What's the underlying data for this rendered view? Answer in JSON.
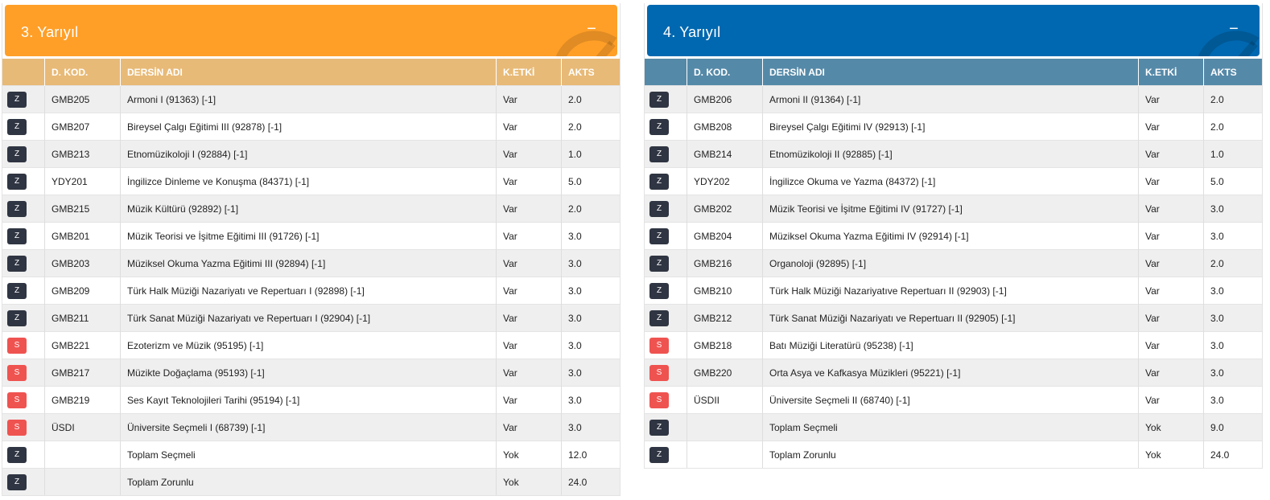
{
  "colors": {
    "sem3_header": "#ff9f28",
    "sem3_table_header": "#e8ba77",
    "sem4_header": "#0068b0",
    "sem4_table_header": "#5589a8",
    "badge_z": "#2f3542",
    "badge_s": "#ef5350"
  },
  "semesters": [
    {
      "title": "3. Yarıyıl",
      "collapse": "−",
      "columns": [
        "",
        "D. KOD.",
        "DERSİN ADI",
        "K.ETKİ",
        "AKTS"
      ],
      "rows": [
        {
          "type": "Z",
          "code": "GMB205",
          "name": "Armoni I (91363) [-1]",
          "k": "Var",
          "akts": "2.0"
        },
        {
          "type": "Z",
          "code": "GMB207",
          "name": "Bireysel Çalgı Eğitimi III (92878) [-1]",
          "k": "Var",
          "akts": "2.0"
        },
        {
          "type": "Z",
          "code": "GMB213",
          "name": "Etnomüzikoloji I (92884) [-1]",
          "k": "Var",
          "akts": "1.0"
        },
        {
          "type": "Z",
          "code": "YDY201",
          "name": "İngilizce Dinleme ve Konuşma (84371) [-1]",
          "k": "Var",
          "akts": "5.0"
        },
        {
          "type": "Z",
          "code": "GMB215",
          "name": "Müzik Kültürü (92892) [-1]",
          "k": "Var",
          "akts": "2.0"
        },
        {
          "type": "Z",
          "code": "GMB201",
          "name": "Müzik Teorisi ve İşitme Eğitimi III (91726) [-1]",
          "k": "Var",
          "akts": "3.0"
        },
        {
          "type": "Z",
          "code": "GMB203",
          "name": "Müziksel Okuma Yazma Eğitimi III (92894) [-1]",
          "k": "Var",
          "akts": "3.0"
        },
        {
          "type": "Z",
          "code": "GMB209",
          "name": "Türk Halk Müziği Nazariyatı ve Repertuarı I (92898) [-1]",
          "k": "Var",
          "akts": "3.0"
        },
        {
          "type": "Z",
          "code": "GMB211",
          "name": "Türk Sanat Müziği Nazariyatı ve Repertuarı I (92904) [-1]",
          "k": "Var",
          "akts": "3.0"
        },
        {
          "type": "S",
          "code": "GMB221",
          "name": "Ezoterizm ve Müzik (95195) [-1]",
          "k": "Var",
          "akts": "3.0"
        },
        {
          "type": "S",
          "code": "GMB217",
          "name": "Müzikte Doğaçlama (95193) [-1]",
          "k": "Var",
          "akts": "3.0"
        },
        {
          "type": "S",
          "code": "GMB219",
          "name": "Ses Kayıt Teknolojileri Tarihi (95194) [-1]",
          "k": "Var",
          "akts": "3.0"
        },
        {
          "type": "S",
          "code": "ÜSDI",
          "name": "Üniversite Seçmeli I (68739) [-1]",
          "k": "Var",
          "akts": "3.0"
        },
        {
          "type": "Z",
          "code": "",
          "name": "Toplam Seçmeli",
          "k": "Yok",
          "akts": "12.0"
        },
        {
          "type": "Z",
          "code": "",
          "name": "Toplam Zorunlu",
          "k": "Yok",
          "akts": "24.0"
        }
      ]
    },
    {
      "title": "4. Yarıyıl",
      "collapse": "−",
      "columns": [
        "",
        "D. KOD.",
        "DERSİN ADI",
        "K.ETKİ",
        "AKTS"
      ],
      "rows": [
        {
          "type": "Z",
          "code": "GMB206",
          "name": "Armoni II (91364) [-1]",
          "k": "Var",
          "akts": "2.0"
        },
        {
          "type": "Z",
          "code": "GMB208",
          "name": "Bireysel Çalgı Eğitimi IV (92913) [-1]",
          "k": "Var",
          "akts": "2.0"
        },
        {
          "type": "Z",
          "code": "GMB214",
          "name": "Etnomüzikoloji II (92885) [-1]",
          "k": "Var",
          "akts": "1.0"
        },
        {
          "type": "Z",
          "code": "YDY202",
          "name": "İngilizce Okuma ve Yazma (84372) [-1]",
          "k": "Var",
          "akts": "5.0"
        },
        {
          "type": "Z",
          "code": "GMB202",
          "name": "Müzik Teorisi ve İşitme Eğitimi IV (91727) [-1]",
          "k": "Var",
          "akts": "3.0"
        },
        {
          "type": "Z",
          "code": "GMB204",
          "name": "Müziksel Okuma Yazma Eğitimi IV (92914) [-1]",
          "k": "Var",
          "akts": "3.0"
        },
        {
          "type": "Z",
          "code": "GMB216",
          "name": "Organoloji (92895) [-1]",
          "k": "Var",
          "akts": "2.0"
        },
        {
          "type": "Z",
          "code": "GMB210",
          "name": "Türk Halk Müziği Nazariyatıve Repertuarı II (92903) [-1]",
          "k": "Var",
          "akts": "3.0"
        },
        {
          "type": "Z",
          "code": "GMB212",
          "name": "Türk Sanat Müziği Nazariyatı ve Repertuarı II (92905) [-1]",
          "k": "Var",
          "akts": "3.0"
        },
        {
          "type": "S",
          "code": "GMB218",
          "name": "Batı Müziği Literatürü (95238) [-1]",
          "k": "Var",
          "akts": "3.0"
        },
        {
          "type": "S",
          "code": "GMB220",
          "name": "Orta Asya ve Kafkasya Müzikleri (95221) [-1]",
          "k": "Var",
          "akts": "3.0"
        },
        {
          "type": "S",
          "code": "ÜSDII",
          "name": "Üniversite Seçmeli II (68740) [-1]",
          "k": "Var",
          "akts": "3.0"
        },
        {
          "type": "Z",
          "code": "",
          "name": "Toplam Seçmeli",
          "k": "Yok",
          "akts": "9.0"
        },
        {
          "type": "Z",
          "code": "",
          "name": "Toplam Zorunlu",
          "k": "Yok",
          "akts": "24.0"
        }
      ]
    }
  ]
}
